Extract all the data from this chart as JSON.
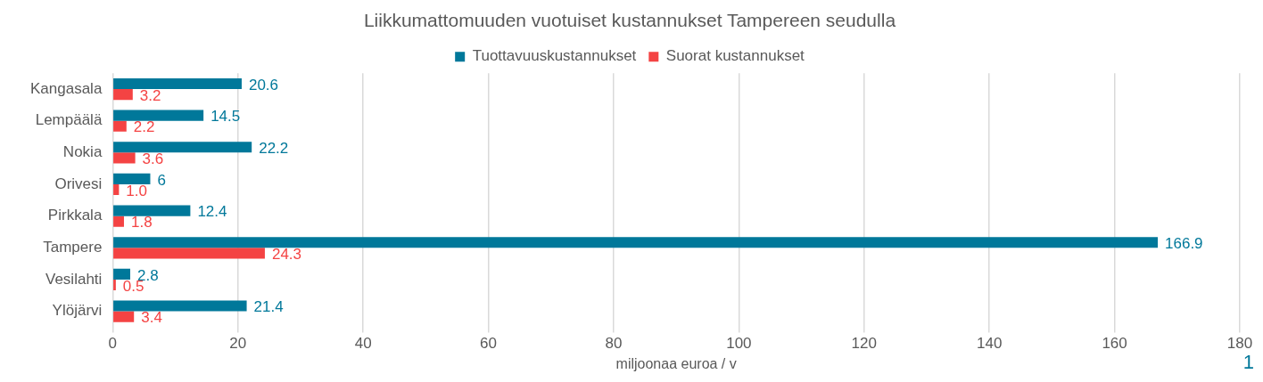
{
  "chart_data": {
    "type": "bar",
    "orientation": "horizontal",
    "title": "Liikkumattomuuden vuotuiset kustannukset Tampereen seudulla",
    "xlabel": "miljoonaa euroa / v",
    "categories": [
      "Kangasala",
      "Lempäälä",
      "Nokia",
      "Orivesi",
      "Pirkkala",
      "Tampere",
      "Vesilahti",
      "Ylöjärvi"
    ],
    "series": [
      {
        "name": "Tuottavuuskustannukset",
        "color": "#00789a",
        "values": [
          20.6,
          14.5,
          22.2,
          6,
          12.4,
          166.9,
          2.8,
          21.4
        ],
        "value_labels": [
          "20.6",
          "14.5",
          "22.2",
          "6",
          "12.4",
          "166.9",
          "2.8",
          "21.4"
        ]
      },
      {
        "name": "Suorat kustannukset",
        "color": "#f44343",
        "values": [
          3.2,
          2.2,
          3.6,
          1.0,
          1.8,
          24.3,
          0.5,
          3.4
        ],
        "value_labels": [
          "3.2",
          "2.2",
          "3.6",
          "1.0",
          "1.8",
          "24.3",
          "0.5",
          "3.4"
        ]
      }
    ],
    "xlim": [
      0,
      180
    ],
    "xticks": [
      0,
      20,
      40,
      60,
      80,
      100,
      120,
      140,
      160,
      180
    ],
    "grid": "x",
    "legend": "top",
    "annotations": [
      "1"
    ]
  }
}
